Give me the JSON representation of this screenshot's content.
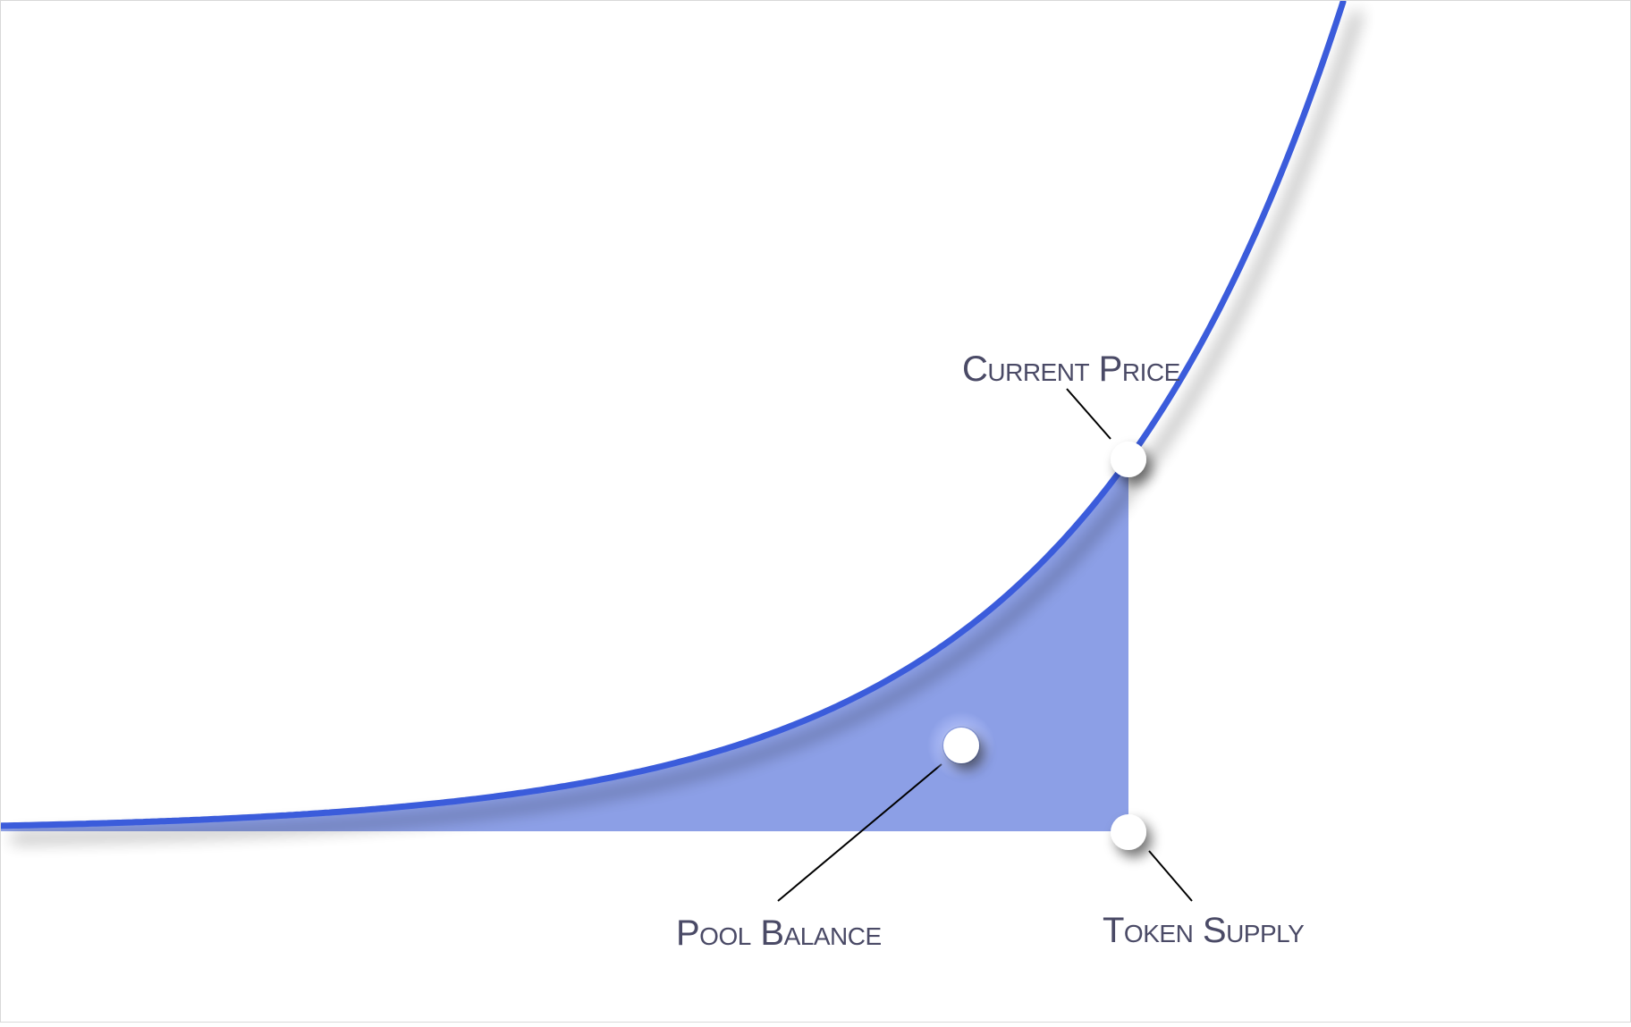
{
  "diagram": {
    "curve_color": "#3b5bdb",
    "fill_color": "#8c9fe6",
    "axis_color": "#000000",
    "marker_color": "#ffffff",
    "text_color": "#4a4a66",
    "labels": {
      "current_price": "Current Price",
      "pool_balance": "Pool Balance",
      "token_supply": "Token Supply"
    }
  }
}
